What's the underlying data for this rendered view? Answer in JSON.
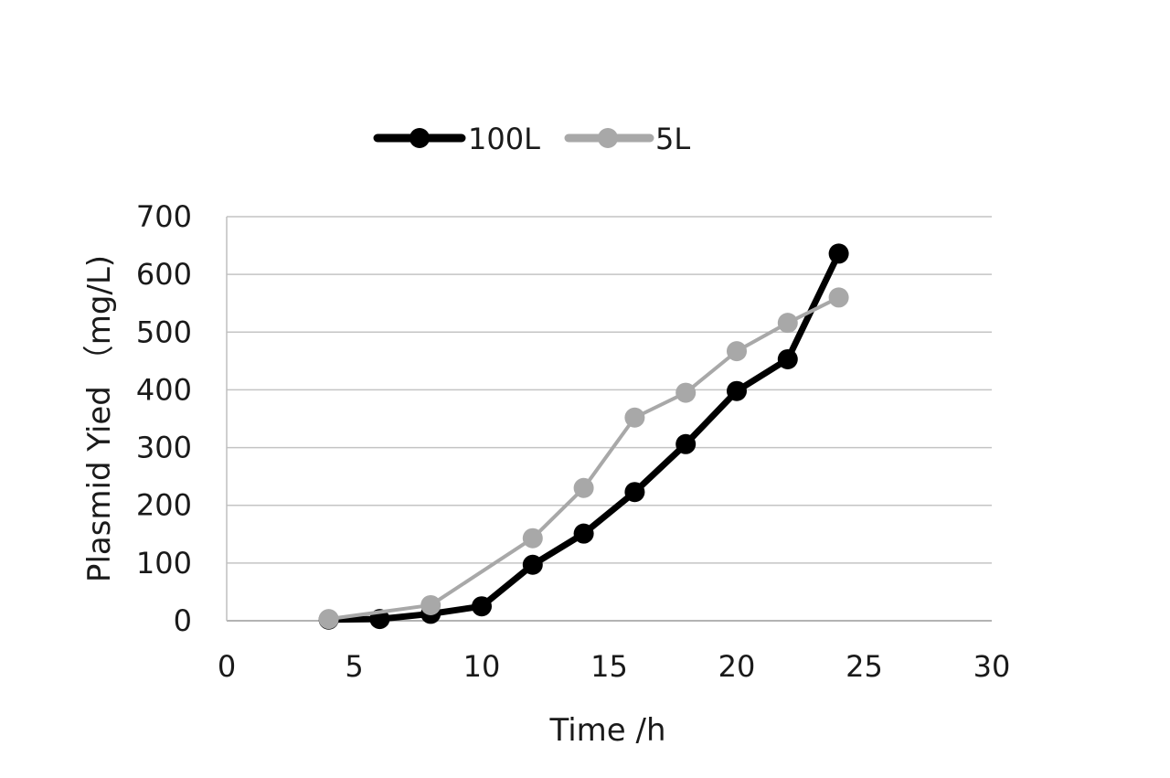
{
  "chart_data": {
    "type": "line",
    "title": "",
    "xlabel": "Time /h",
    "ylabel": "Plasmid Yied （mg/L)",
    "xlim": [
      0,
      30
    ],
    "ylim": [
      0,
      700
    ],
    "x_ticks": [
      0,
      5,
      10,
      15,
      20,
      25,
      30
    ],
    "y_ticks": [
      0,
      100,
      200,
      300,
      400,
      500,
      600,
      700
    ],
    "grid": "horizontal",
    "legend_position": "top-center",
    "series": [
      {
        "name": "100L",
        "color": "#000000",
        "x": [
          4,
          6,
          8,
          10,
          12,
          14,
          16,
          18,
          20,
          22,
          24
        ],
        "values": [
          2,
          3,
          12,
          25,
          97,
          151,
          223,
          306,
          398,
          453,
          636
        ]
      },
      {
        "name": "5L",
        "color": "#a8a8a8",
        "x": [
          4,
          8,
          12,
          14,
          16,
          18,
          20,
          22,
          24
        ],
        "values": [
          3,
          27,
          143,
          230,
          352,
          395,
          467,
          516,
          560
        ]
      }
    ]
  }
}
